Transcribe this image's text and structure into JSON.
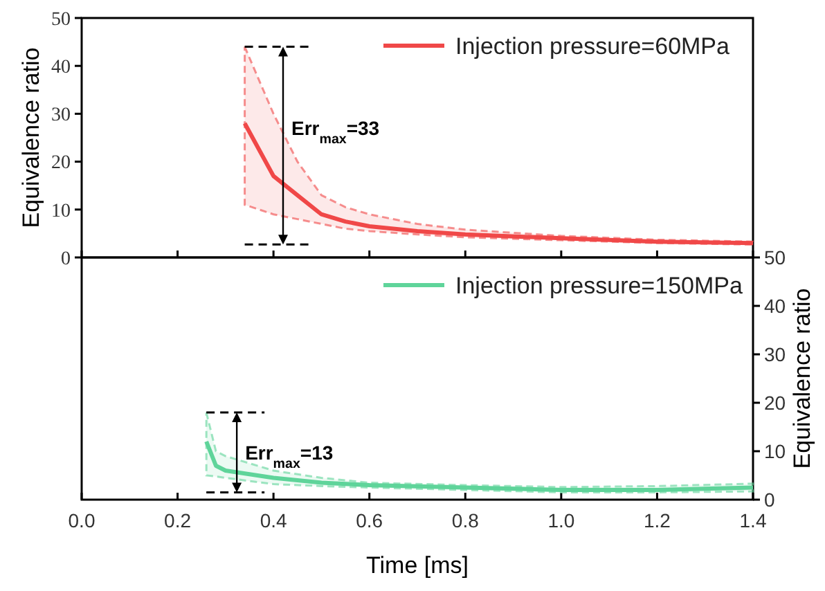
{
  "chart_data": [
    {
      "type": "line",
      "ylabel": "Equivalence ratio",
      "xlim": [
        0,
        1.4
      ],
      "xticks": [
        0,
        0.2,
        0.4,
        0.6,
        0.8,
        1.0,
        1.2,
        1.4
      ],
      "ylim": [
        0,
        50
      ],
      "yticks": [
        0,
        10,
        20,
        30,
        40,
        50
      ],
      "tick_labels": "y",
      "legend": "top right",
      "grid": false,
      "series": [
        {
          "name": "Injection pressure=60MPa",
          "color": "#f04848",
          "x": [
            0.34,
            0.4,
            0.45,
            0.5,
            0.55,
            0.6,
            0.7,
            0.8,
            1.0,
            1.2,
            1.4
          ],
          "values": [
            28,
            17,
            13,
            9,
            7.5,
            6.5,
            5.5,
            4.8,
            4,
            3.3,
            3
          ],
          "lower": [
            11,
            9,
            8,
            7,
            6,
            5.5,
            4.8,
            4.2,
            3.6,
            3,
            2.7
          ],
          "upper": [
            44,
            30,
            20,
            13,
            10.5,
            9,
            7,
            5.8,
            4.5,
            3.7,
            3.3
          ]
        }
      ],
      "annotations": [
        {
          "text": "Err$_{max}$=33",
          "x": 0.42,
          "y": 27
        }
      ]
    },
    {
      "type": "line",
      "xlabel": "Time [ms]",
      "y2label": "Equivalence ratio",
      "xlim": [
        0,
        1.4
      ],
      "xticks": [
        {
          "value": 0,
          "label": "0.0"
        },
        0.2,
        0.4,
        0.6,
        0.8,
        {
          "value": 1,
          "label": "1.0"
        },
        1.2,
        1.4
      ],
      "y2lim": [
        0,
        50
      ],
      "y2ticks": [
        0,
        10,
        20,
        30,
        40,
        50
      ],
      "legend": "top right",
      "grid": false,
      "series": [
        {
          "name": "Injection pressure=150MPa",
          "color": "#5fd49a",
          "axis": "y2",
          "x": [
            0.26,
            0.28,
            0.3,
            0.4,
            0.5,
            0.6,
            0.8,
            1.0,
            1.2,
            1.4
          ],
          "values": [
            12,
            7,
            6,
            4.5,
            3.5,
            3,
            2.5,
            2,
            2,
            2.5
          ],
          "lower": [
            5,
            4.8,
            4.5,
            3.2,
            2.8,
            2.5,
            2,
            1.5,
            1.5,
            1.7
          ],
          "upper": [
            18,
            10,
            9,
            6,
            4.5,
            3.5,
            3,
            2.6,
            2.8,
            3.3
          ]
        }
      ],
      "annotations": [
        "Err$_{max}$=13"
      ]
    }
  ]
}
